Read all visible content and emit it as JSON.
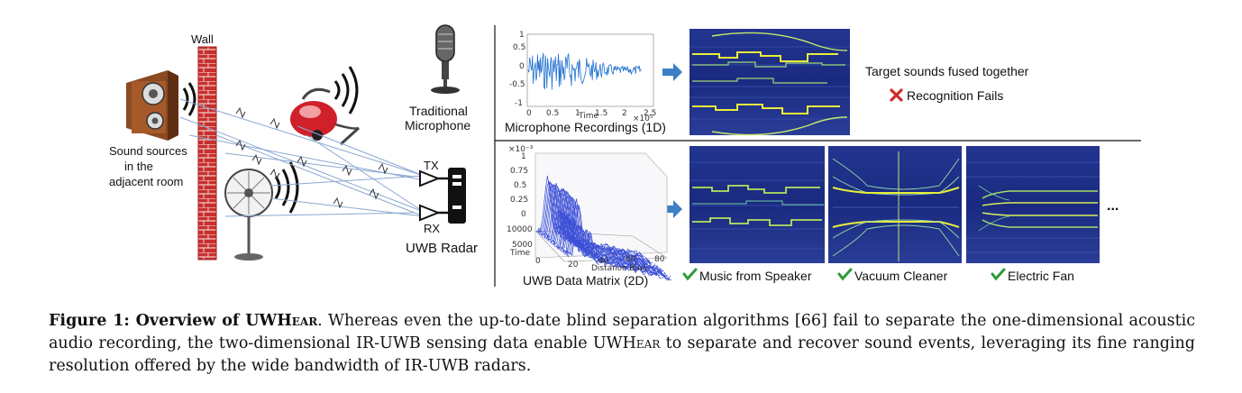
{
  "figure": {
    "wall_label": "Wall",
    "sources_label": [
      "Sound sources",
      "in the",
      "adjacent room"
    ],
    "tx_label": "TX",
    "rx_label": "RX",
    "radar_label": "UWB Radar",
    "mic_label": [
      "Traditional",
      "Microphone"
    ],
    "mic_plot": {
      "caption": "Microphone Recordings (1D)",
      "ytick_labels": [
        "1",
        "0.5",
        "0",
        "-0.5",
        "-1"
      ],
      "xtick_labels": [
        "0",
        "0.5",
        "1",
        "1.5",
        "2",
        "2.5"
      ],
      "xlabel": "Time",
      "x_exponent": "×10⁵"
    },
    "fail_text": "Target sounds fused together",
    "fail_result": "Recognition Fails",
    "uwb_plot": {
      "caption": "UWB Data Matrix (2D)",
      "exponent": "×10⁻³",
      "ztick_labels": [
        "1",
        "0.75",
        "0.5",
        "0.25",
        "0"
      ],
      "time_tick_labels": [
        "10000",
        "5000"
      ],
      "time_label": "Time",
      "dist_tick_labels": [
        "0",
        "20",
        "40",
        "60",
        "80"
      ],
      "dist_label": "Distance Bins"
    },
    "results": [
      "Music from Speaker",
      "Vacuum Cleaner",
      "Electric Fan"
    ],
    "ellipsis": "..."
  },
  "caption": {
    "label": "Figure 1: Overview of UWH",
    "label_sc": "ear",
    "line1": ". Whereas even the up-to-date blind separation algorithms [66] fail to separate the one-dimensional acoustic audio recording, the two-dimensional IR-UWB sensing data enable UWH",
    "line1_sc": "ear",
    "line2": " to separate and recover sound events, leveraging its fine ranging resolution offered by the wide bandwidth of IR-UWB radars."
  },
  "colors": {
    "spectrogram_bg": "#1d2f8a",
    "spectrogram_line": "#e8ee3a",
    "waveform": "#1f6fd0",
    "wall_brick": "#c8302e",
    "arrow": "#3b7fc4",
    "check": "#2e9a3a",
    "cross": "#d12a2a"
  }
}
